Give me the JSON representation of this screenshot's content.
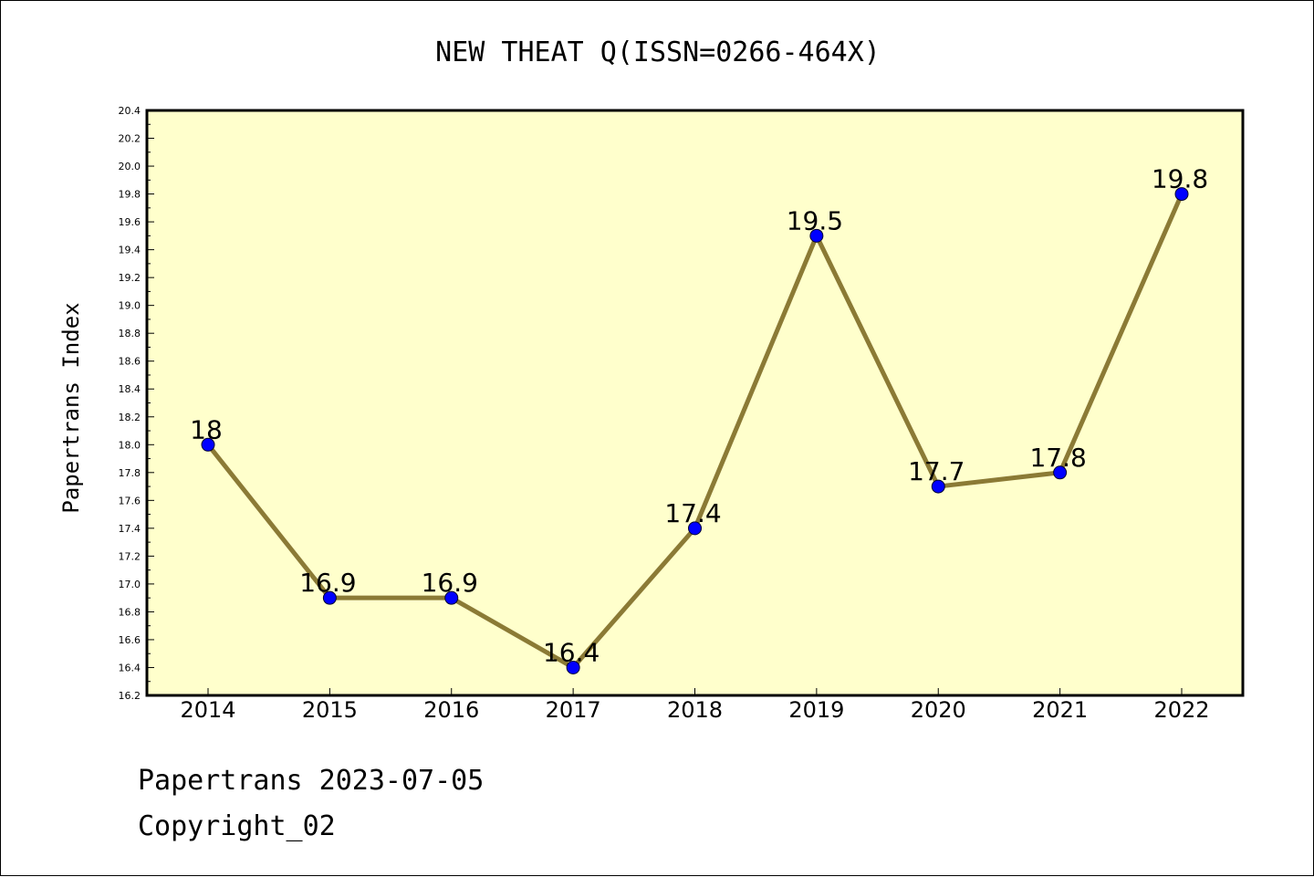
{
  "chart_data": {
    "type": "line",
    "title": "NEW THEAT Q(ISSN=0266-464X)",
    "xlabel": "",
    "ylabel": "Papertrans Index",
    "categories": [
      "2014",
      "2015",
      "2016",
      "2017",
      "2018",
      "2019",
      "2020",
      "2021",
      "2022"
    ],
    "series": [
      {
        "values": [
          18.0,
          16.9,
          16.9,
          16.4,
          17.4,
          19.5,
          17.7,
          17.8,
          19.8
        ],
        "point_labels": [
          "18",
          "16.9",
          "16.9",
          "16.4",
          "17.4",
          "19.5",
          "17.7",
          "17.8",
          "19.8"
        ],
        "line_color": "#8b7a35",
        "marker_color": "#0000ff"
      }
    ],
    "ylim": [
      16.2,
      20.4
    ],
    "yticks": [
      "16.2",
      "16.4",
      "16.6",
      "16.8",
      "17.0",
      "17.2",
      "17.4",
      "17.6",
      "17.8",
      "18.0",
      "18.2",
      "18.4",
      "18.6",
      "18.8",
      "19.0",
      "19.2",
      "19.4",
      "19.6",
      "19.8",
      "20.0",
      "20.2",
      "20.4"
    ],
    "grid": false,
    "plot_background": "#ffffcc"
  },
  "footer": {
    "line1": "Papertrans 2023-07-05",
    "line2": "Copyright_02"
  }
}
